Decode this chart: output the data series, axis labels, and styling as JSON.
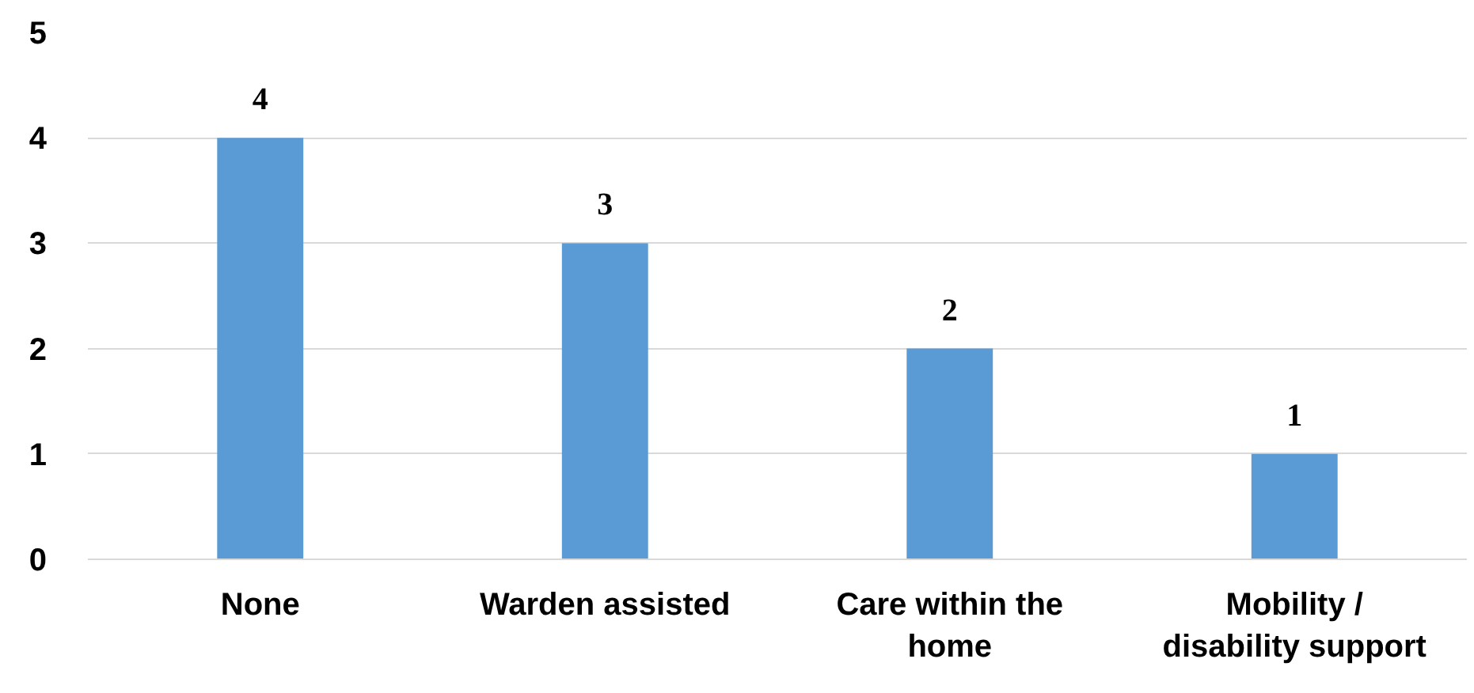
{
  "chart_data": {
    "type": "bar",
    "categories": [
      "None",
      "Warden assisted",
      "Care within the home",
      "Mobility / disability support"
    ],
    "values": [
      4,
      3,
      2,
      1
    ],
    "color": "#5b9bd5",
    "ylim": [
      0,
      5
    ],
    "yticks": [
      0,
      1,
      2,
      3,
      4,
      5
    ],
    "grid": "y",
    "data_labels": true
  }
}
